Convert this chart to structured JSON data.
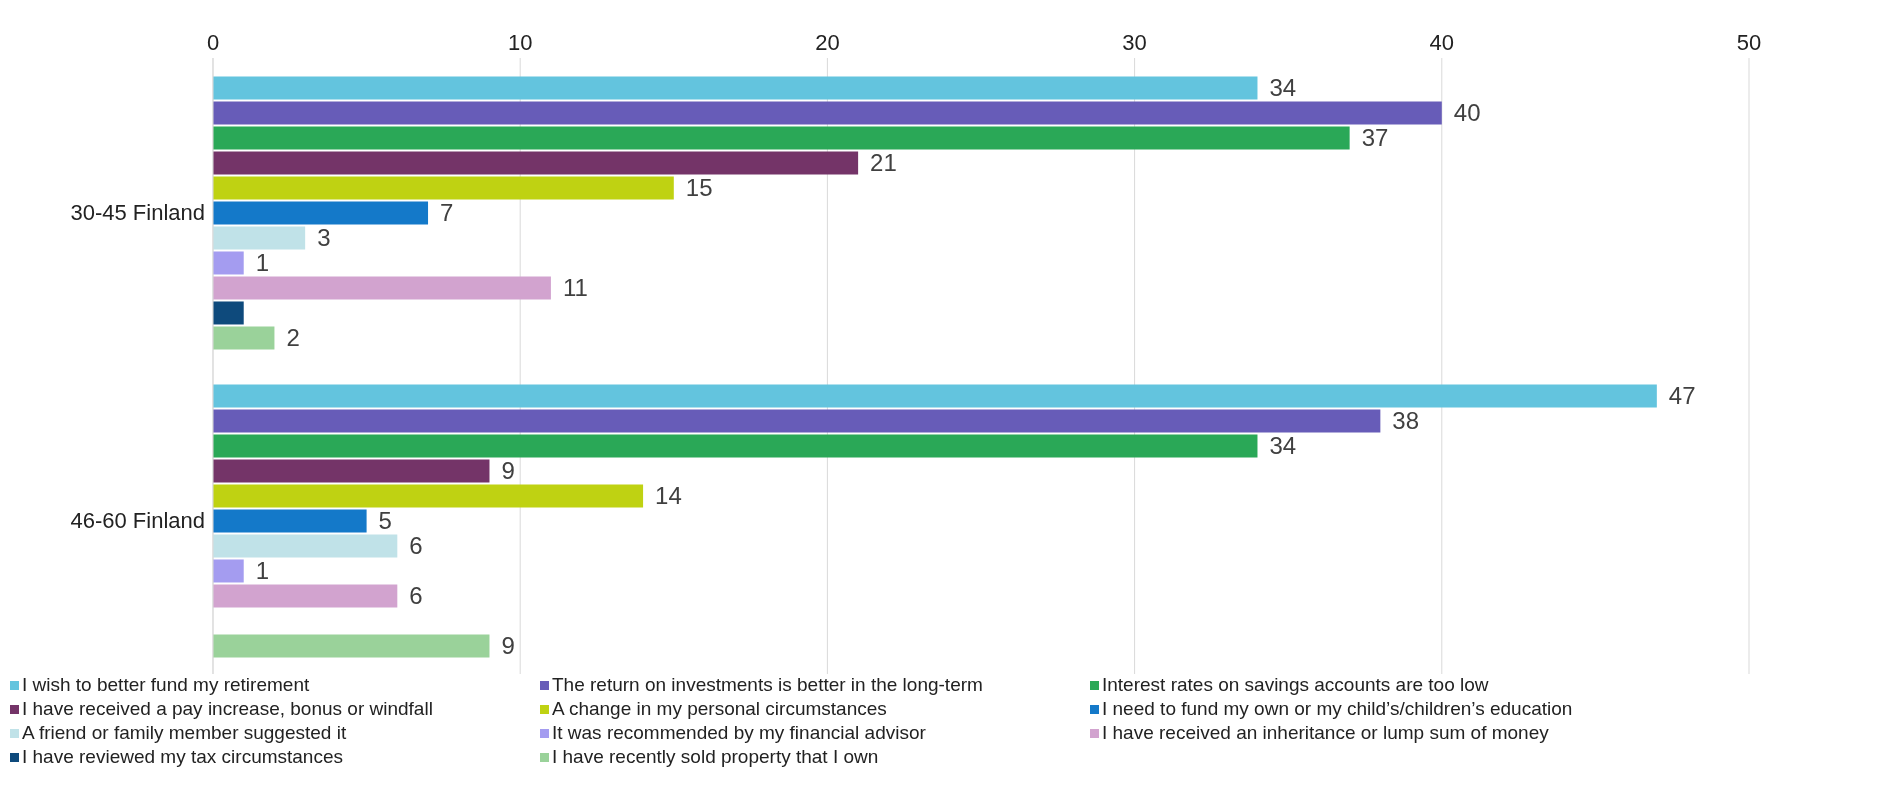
{
  "chart_data": {
    "type": "bar",
    "orientation": "horizontal",
    "categories": [
      "30-45 Finland",
      "46-60 Finland"
    ],
    "series": [
      {
        "name": "I wish to better fund my retirement",
        "color": "#63c4de",
        "values": [
          34,
          47
        ],
        "value_labels": [
          "34",
          "47"
        ]
      },
      {
        "name": "The return on investments is better in the long-term",
        "color": "#675cb8",
        "values": [
          40,
          38
        ],
        "value_labels": [
          "40",
          "38"
        ]
      },
      {
        "name": "Interest rates on savings accounts are too low",
        "color": "#2aa857",
        "values": [
          37,
          34
        ],
        "value_labels": [
          "37",
          "34"
        ]
      },
      {
        "name": "I have received a pay increase, bonus or windfall",
        "color": "#743468",
        "values": [
          21,
          9
        ],
        "value_labels": [
          "21",
          "9"
        ]
      },
      {
        "name": "A change in my personal circumstances",
        "color": "#bfd212",
        "values": [
          15,
          14
        ],
        "value_labels": [
          "15",
          "14"
        ]
      },
      {
        "name": "I need to fund my own or my child’s/children’s education",
        "color": "#1479c9",
        "values": [
          7,
          5
        ],
        "value_labels": [
          "7",
          "5"
        ]
      },
      {
        "name": "A friend or family member suggested it",
        "color": "#c0e2e8",
        "values": [
          3,
          6
        ],
        "value_labels": [
          "3",
          "6"
        ]
      },
      {
        "name": "It was recommended by my financial advisor",
        "color": "#a49cf0",
        "values": [
          1,
          1
        ],
        "value_labels": [
          "1",
          "1"
        ]
      },
      {
        "name": "I have received an inheritance or lump sum of money",
        "color": "#d2a3cf",
        "values": [
          11,
          6
        ],
        "value_labels": [
          "11",
          "6"
        ]
      },
      {
        "name": "I have reviewed my tax circumstances",
        "color": "#0e4a7c",
        "values": [
          1,
          null
        ],
        "value_labels": [
          null,
          null
        ]
      },
      {
        "name": "I have recently sold property that I own",
        "color": "#9ad29a",
        "values": [
          2,
          9
        ],
        "value_labels": [
          "2",
          "9"
        ]
      }
    ],
    "xlim": [
      0,
      50
    ],
    "xticks": [
      0,
      10,
      20,
      30,
      40,
      50
    ],
    "grid": "x",
    "legend": "bottom"
  }
}
